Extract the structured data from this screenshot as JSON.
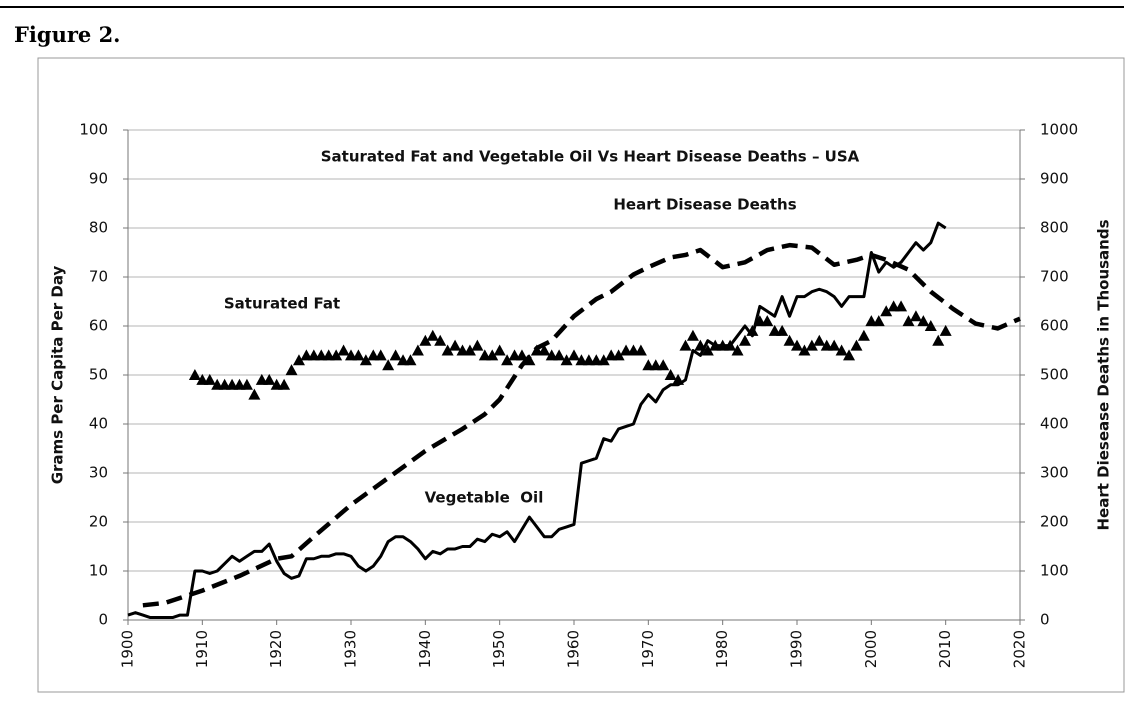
{
  "figure_label": "Figure 2.",
  "chart_data": {
    "type": "line",
    "title": "Saturated Fat and Vegetable Oil Vs Heart Disease Deaths – USA",
    "ylabel": "Grams Per Capita Per Day",
    "y2label": "Heart Diesease Deaths in Thousands",
    "annotations": [
      "Heart Disease Deaths",
      "Saturated Fat",
      "Vegetable  Oil"
    ],
    "xlim": [
      1900,
      2020
    ],
    "xticks": [
      1900,
      1910,
      1920,
      1930,
      1940,
      1950,
      1960,
      1970,
      1980,
      1990,
      2000,
      2010,
      2020
    ],
    "ylim": [
      0,
      100
    ],
    "yticks": [
      0,
      10,
      20,
      30,
      40,
      50,
      60,
      70,
      80,
      90,
      100
    ],
    "y2lim": [
      0,
      1000
    ],
    "y2ticks": [
      0,
      100,
      200,
      300,
      400,
      500,
      600,
      700,
      800,
      900,
      1000
    ],
    "grid": true,
    "series": [
      {
        "style": "markers",
        "color": "#000000",
        "x": [
          1909,
          1910,
          1911,
          1912,
          1913,
          1914,
          1915,
          1916,
          1917,
          1918,
          1919,
          1920,
          1921,
          1922,
          1923,
          1924,
          1925,
          1926,
          1927,
          1928,
          1929,
          1930,
          1931,
          1932,
          1933,
          1934,
          1935,
          1936,
          1937,
          1938,
          1939,
          1940,
          1941,
          1942,
          1943,
          1944,
          1945,
          1946,
          1947,
          1948,
          1949,
          1950,
          1951,
          1952,
          1953,
          1954,
          1955,
          1956,
          1957,
          1958,
          1959,
          1960,
          1961,
          1962,
          1963,
          1964,
          1965,
          1966,
          1967,
          1968,
          1969,
          1970,
          1971,
          1972,
          1973,
          1974,
          1975,
          1976,
          1977,
          1978,
          1979,
          1980,
          1981,
          1982,
          1983,
          1984,
          1985,
          1986,
          1987,
          1988,
          1989,
          1990,
          1991,
          1992,
          1993,
          1994,
          1995,
          1996,
          1997,
          1998,
          1999,
          2000,
          2001,
          2002,
          2003,
          2004,
          2005,
          2006,
          2007,
          2008,
          2009,
          2010
        ],
        "values": [
          50,
          49,
          49,
          48,
          48,
          48,
          48,
          48,
          46,
          49,
          49,
          48,
          48,
          51,
          53,
          54,
          54,
          54,
          54,
          54,
          55,
          54,
          54,
          53,
          54,
          54,
          52,
          54,
          53,
          53,
          55,
          57,
          58,
          57,
          55,
          56,
          55,
          55,
          56,
          54,
          54,
          55,
          53,
          54,
          54,
          53,
          55,
          55,
          54,
          54,
          53,
          54,
          53,
          53,
          53,
          53,
          54,
          54,
          55,
          55,
          55,
          52,
          52,
          52,
          50,
          49,
          56,
          58,
          56,
          55,
          56,
          56,
          56,
          55,
          57,
          59,
          61,
          61,
          59,
          59,
          57,
          56,
          55,
          56,
          57,
          56,
          56,
          55,
          54,
          56,
          58,
          61,
          61,
          63,
          64,
          64,
          61,
          62,
          61,
          60,
          57,
          59
        ]
      },
      {
        "style": "solid",
        "color": "#000000",
        "x": [
          1900,
          1901,
          1902,
          1903,
          1904,
          1905,
          1906,
          1907,
          1908,
          1909,
          1910,
          1911,
          1912,
          1913,
          1914,
          1915,
          1916,
          1917,
          1918,
          1919,
          1920,
          1921,
          1922,
          1923,
          1924,
          1925,
          1926,
          1927,
          1928,
          1929,
          1930,
          1931,
          1932,
          1933,
          1934,
          1935,
          1936,
          1937,
          1938,
          1939,
          1940,
          1941,
          1942,
          1943,
          1944,
          1945,
          1946,
          1947,
          1948,
          1949,
          1950,
          1951,
          1952,
          1953,
          1954,
          1955,
          1956,
          1957,
          1958,
          1959,
          1960,
          1961,
          1962,
          1963,
          1964,
          1965,
          1966,
          1967,
          1968,
          1969,
          1970,
          1971,
          1972,
          1973,
          1974,
          1975,
          1976,
          1977,
          1978,
          1979,
          1980,
          1981,
          1982,
          1983,
          1984,
          1985,
          1986,
          1987,
          1988,
          1989,
          1990,
          1991,
          1992,
          1993,
          1994,
          1995,
          1996,
          1997,
          1998,
          1999,
          2000,
          2001,
          2002,
          2003,
          2004,
          2005,
          2006,
          2007,
          2008,
          2009,
          2010
        ],
        "values": [
          1,
          1.5,
          1,
          0.5,
          0.5,
          0.5,
          0.5,
          1,
          1,
          10,
          10,
          9.5,
          10,
          11.5,
          13,
          12,
          13,
          14,
          14,
          15.5,
          12,
          9.5,
          8.5,
          9,
          12.5,
          12.5,
          13,
          13,
          13.5,
          13.5,
          13,
          11,
          10,
          11,
          13,
          16,
          17,
          17,
          16,
          14.5,
          12.5,
          14,
          13.5,
          14.5,
          14.5,
          15,
          15,
          16.5,
          16,
          17.5,
          17,
          18,
          16,
          18.5,
          21,
          19,
          17,
          17,
          18.5,
          19,
          19.5,
          32,
          32.5,
          33,
          37,
          36.5,
          39,
          39.5,
          40,
          44,
          46,
          44.5,
          47,
          48,
          48,
          49,
          55,
          54,
          57,
          56,
          56,
          56,
          58,
          60,
          58,
          64,
          63,
          62,
          66,
          62,
          66,
          66,
          67,
          67.5,
          67,
          66,
          64,
          66,
          66,
          66,
          75,
          71,
          73,
          72,
          73,
          75,
          77,
          75.5,
          77,
          81,
          80
        ]
      },
      {
        "style": "dashed",
        "color": "#000000",
        "axis": "y2",
        "x": [
          1902,
          1905,
          1910,
          1915,
          1920,
          1922,
          1925,
          1930,
          1935,
          1940,
          1945,
          1948,
          1950,
          1953,
          1955,
          1957,
          1960,
          1963,
          1965,
          1968,
          1970,
          1973,
          1975,
          1977,
          1980,
          1983,
          1986,
          1989,
          1992,
          1995,
          1998,
          2000,
          2002,
          2005,
          2008,
          2011,
          2014,
          2017,
          2020
        ],
        "values": [
          30,
          35,
          60,
          90,
          125,
          130,
          170,
          235,
          290,
          345,
          390,
          420,
          450,
          520,
          555,
          570,
          620,
          655,
          670,
          705,
          720,
          740,
          745,
          755,
          720,
          730,
          755,
          765,
          760,
          725,
          735,
          745,
          735,
          715,
          670,
          635,
          605,
          595,
          615
        ]
      }
    ]
  }
}
